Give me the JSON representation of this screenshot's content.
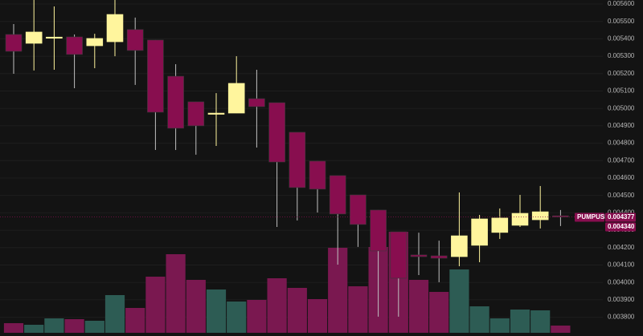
{
  "chart_data": {
    "type": "candlestick",
    "symbol": "PUMPUSD",
    "open": [
      0.005425,
      0.005374,
      0.005406,
      0.005411,
      0.00536,
      0.005383,
      0.005453,
      0.005393,
      0.005185,
      0.005038,
      0.004969,
      0.004973,
      0.005056,
      0.005033,
      0.004863,
      0.004697,
      0.004614,
      0.004503,
      0.004416,
      0.004291,
      0.004158,
      0.004153,
      0.004148,
      0.004213,
      0.004287,
      0.004328,
      0.00436,
      0.004383
    ],
    "high": [
      0.005485,
      0.005623,
      0.005586,
      0.005425,
      0.005429,
      0.005623,
      0.005522,
      0.005393,
      0.005254,
      0.005038,
      0.005088,
      0.0053,
      0.005222,
      0.005033,
      0.004863,
      0.004697,
      0.004614,
      0.004503,
      0.004416,
      0.004291,
      0.004286,
      0.00424,
      0.004517,
      0.004388,
      0.004425,
      0.004503,
      0.004554,
      0.004416
    ],
    "low": [
      0.005199,
      0.005218,
      0.005222,
      0.005116,
      0.005231,
      0.0053,
      0.005135,
      0.004761,
      0.004761,
      0.004734,
      0.004784,
      0.004973,
      0.004775,
      0.004319,
      0.004356,
      0.004402,
      0.004102,
      0.004204,
      0.003803,
      0.003803,
      0.004042,
      0.004001,
      0.004093,
      0.004116,
      0.00425,
      0.004319,
      0.00431,
      0.004324
    ],
    "close": [
      0.005328,
      0.005439,
      0.00541,
      0.00531,
      0.005402,
      0.00554,
      0.005333,
      0.004978,
      0.004886,
      0.0049,
      0.004973,
      0.005144,
      0.00501,
      0.004692,
      0.004545,
      0.004536,
      0.004393,
      0.004333,
      0.004181,
      0.004024,
      0.004148,
      0.004139,
      0.004268,
      0.004365,
      0.00437,
      0.004397,
      0.004406,
      0.004377
    ],
    "volume": [
      12,
      10,
      18,
      17,
      15,
      47,
      31,
      70,
      98,
      66,
      54,
      39,
      41,
      68,
      56,
      42,
      106,
      58,
      107,
      126,
      66,
      51,
      79,
      33,
      18,
      29,
      28,
      9
    ],
    "up_color": "#fff59d",
    "down_color": "#880e4f",
    "volume_up_color": "#2d5c54",
    "volume_down_color": "#7a1850",
    "ylim": [
      0.003692,
      0.005623
    ],
    "yticks": [
      {
        "value": 0.0056,
        "label": "0.005600"
      },
      {
        "value": 0.0055,
        "label": "0.005500"
      },
      {
        "value": 0.0054,
        "label": "0.005400"
      },
      {
        "value": 0.0053,
        "label": "0.005300"
      },
      {
        "value": 0.0052,
        "label": "0.005200"
      },
      {
        "value": 0.0051,
        "label": "0.005100"
      },
      {
        "value": 0.005,
        "label": "0.005000"
      },
      {
        "value": 0.0049,
        "label": "0.004900"
      },
      {
        "value": 0.0048,
        "label": "0.004800"
      },
      {
        "value": 0.0047,
        "label": "0.004700"
      },
      {
        "value": 0.0046,
        "label": "0.004600"
      },
      {
        "value": 0.0045,
        "label": "0.004500"
      },
      {
        "value": 0.0044,
        "label": "0.004400"
      },
      {
        "value": 0.0043,
        "label": "0.004300"
      },
      {
        "value": 0.0042,
        "label": "0.004200"
      },
      {
        "value": 0.0041,
        "label": "0.004100"
      },
      {
        "value": 0.004,
        "label": "0.004000"
      },
      {
        "value": 0.0039,
        "label": "0.003900"
      },
      {
        "value": 0.0038,
        "label": "0.003800"
      }
    ],
    "price_labels": [
      {
        "value": 0.004377,
        "label": "0.004377"
      },
      {
        "value": 0.00434,
        "label": "0.004340"
      }
    ],
    "grid": true
  }
}
